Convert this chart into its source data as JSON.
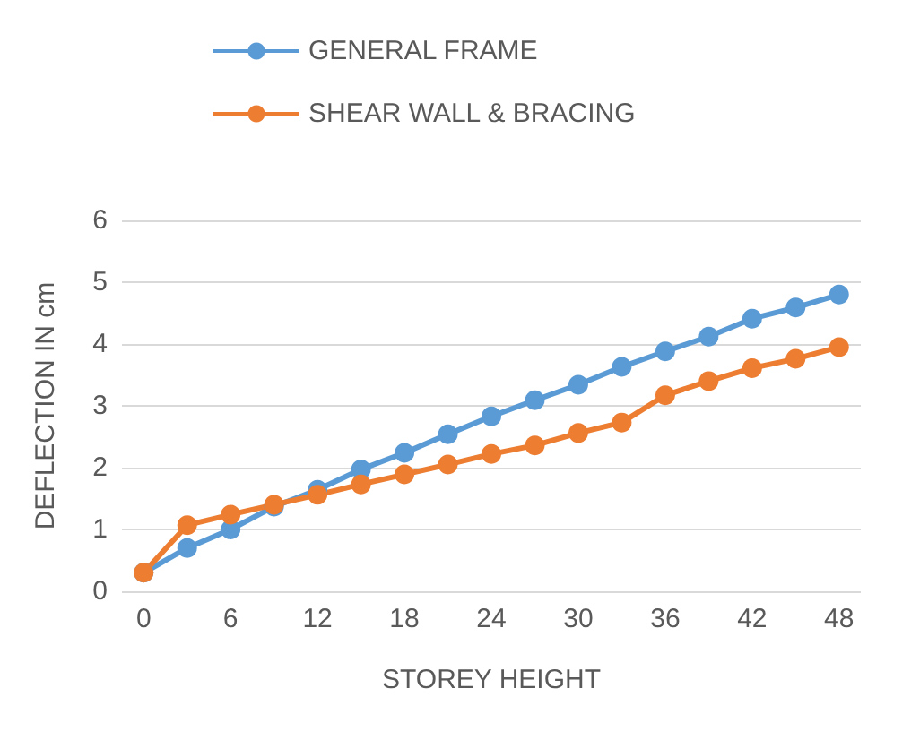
{
  "chart_data": {
    "type": "line",
    "xlabel": "STOREY HEIGHT",
    "ylabel": "DEFLECTION IN cm",
    "categories": [
      "0",
      null,
      "6",
      null,
      "12",
      null,
      "18",
      null,
      "24",
      null,
      "30",
      null,
      "36",
      null,
      "42",
      null,
      "48"
    ],
    "series": [
      {
        "name": "GENERAL FRAME",
        "color": "#5b9bd5",
        "values": [
          0.3,
          0.7,
          1.0,
          1.37,
          1.64,
          1.97,
          2.24,
          2.54,
          2.83,
          3.09,
          3.34,
          3.63,
          3.88,
          4.12,
          4.41,
          4.59,
          4.8
        ]
      },
      {
        "name": "SHEAR WALL & BRACING",
        "color": "#ed7d31",
        "values": [
          0.3,
          1.07,
          1.24,
          1.4,
          1.56,
          1.73,
          1.89,
          2.05,
          2.22,
          2.36,
          2.56,
          2.73,
          3.17,
          3.4,
          3.61,
          3.76,
          3.95
        ]
      }
    ],
    "ylim": [
      0,
      6
    ],
    "yticks": [
      0,
      1,
      2,
      3,
      4,
      5,
      6
    ],
    "grid": "y",
    "legend": "top",
    "marker": "circle",
    "line_style": "solid"
  }
}
